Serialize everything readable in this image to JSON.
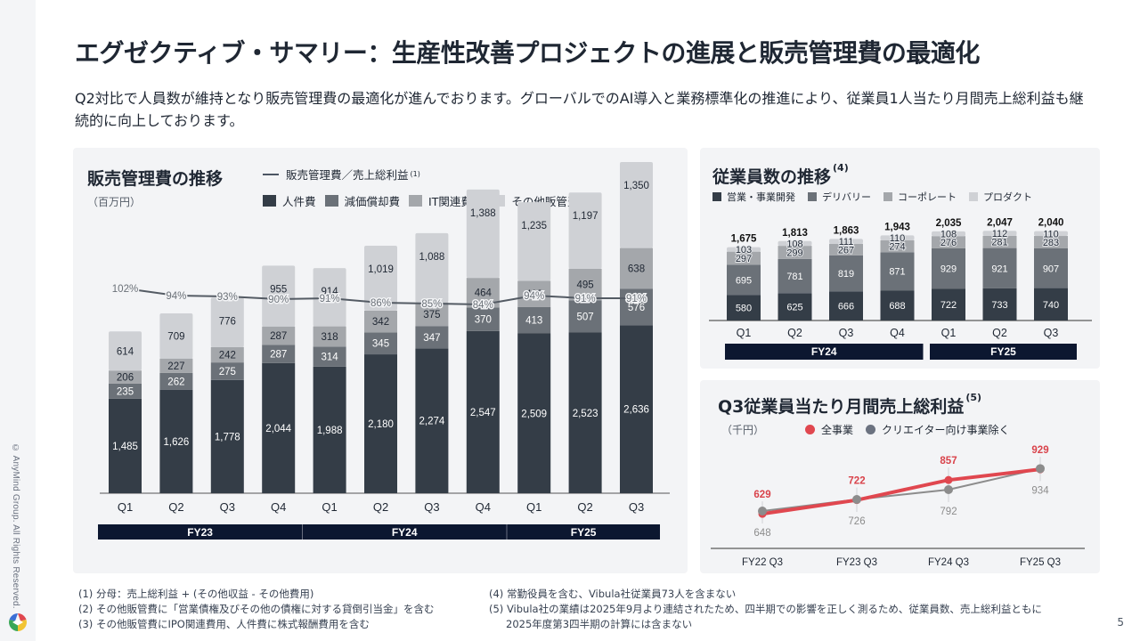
{
  "page": {
    "title": "エグゼクティブ・サマリー：生産性改善プロジェクトの進展と販売管理費の最適化",
    "summary": "Q2対比で人員数が維持となり販売管理費の最適化が進んでおります。グローバルでのAI導入と業務標準化の推進により、従業員1人当たり月間売上総利益も継続的に向上しております。",
    "copyright": "© AnyMind Group. All Rights Reserved.",
    "page_number": "5",
    "colors": {
      "navy": "#0c1730",
      "dark": "#343d47",
      "mid": "#6b7178",
      "light": "#a4a7ab",
      "lightest": "#cfd1d5",
      "red": "#e0474f",
      "gray_line": "#8c8c8c"
    }
  },
  "sga_panel": {
    "title": "販売管理費の推移",
    "unit": "（百万円）",
    "legend_line": {
      "label": "販売管理費／売上総利益",
      "note": "(1)"
    },
    "legend": [
      {
        "label": "人件費",
        "color": "#343d47"
      },
      {
        "label": "減価償却費",
        "color": "#6b7178"
      },
      {
        "label": "IT関連費用",
        "color": "#a4a7ab"
      },
      {
        "label": "その他販管費",
        "color": "#cfd1d5",
        "note": "(2)(3)"
      }
    ]
  },
  "emp_panel": {
    "title": "従業員数の推移",
    "note": "(4)",
    "legend": [
      {
        "label": "営業・事業開発",
        "color": "#343d47"
      },
      {
        "label": "デリバリー",
        "color": "#6b7178"
      },
      {
        "label": "コーポレート",
        "color": "#a4a7ab"
      },
      {
        "label": "プロダクト",
        "color": "#cfd1d5"
      }
    ]
  },
  "gp_panel": {
    "title": "Q3従業員当たり月間売上総利益",
    "note": "(5)",
    "unit": "（千円）",
    "legend": [
      {
        "label": "全事業",
        "color": "#e0474f"
      },
      {
        "label": "クリエイター向け事業除く",
        "color": "#6b7280"
      }
    ]
  },
  "chart_data": [
    {
      "type": "bar",
      "stacked": true,
      "title": "販売管理費の推移",
      "ylabel": "百万円",
      "categories": [
        "Q1",
        "Q2",
        "Q3",
        "Q4",
        "Q1",
        "Q2",
        "Q3",
        "Q4",
        "Q1",
        "Q2",
        "Q3"
      ],
      "groups": [
        {
          "label": "FY23",
          "span": [
            0,
            3
          ]
        },
        {
          "label": "FY24",
          "span": [
            4,
            7
          ]
        },
        {
          "label": "FY25",
          "span": [
            8,
            10
          ]
        }
      ],
      "series": [
        {
          "name": "人件費",
          "values": [
            1485,
            1626,
            1778,
            2044,
            1988,
            2180,
            2274,
            2547,
            2509,
            2523,
            2636
          ]
        },
        {
          "name": "減価償却費",
          "values": [
            235,
            262,
            275,
            287,
            314,
            345,
            347,
            370,
            413,
            507,
            576
          ]
        },
        {
          "name": "IT関連費用",
          "values": [
            206,
            227,
            242,
            287,
            318,
            342,
            375,
            464,
            413,
            495,
            638
          ]
        },
        {
          "name": "その他販管費",
          "values": [
            614,
            709,
            776,
            955,
            914,
            1019,
            1088,
            1388,
            1235,
            1197,
            1350
          ]
        }
      ],
      "line_series": {
        "name": "販売管理費／売上総利益",
        "values": [
          102,
          94,
          93,
          90,
          91,
          86,
          85,
          84,
          94,
          91,
          91
        ],
        "unit": "%"
      },
      "ylim": [
        0,
        5200
      ]
    },
    {
      "type": "bar",
      "stacked": true,
      "title": "従業員数の推移",
      "categories": [
        "Q1",
        "Q2",
        "Q3",
        "Q4",
        "Q1",
        "Q2",
        "Q3"
      ],
      "groups": [
        {
          "label": "FY24",
          "span": [
            0,
            3
          ]
        },
        {
          "label": "FY25",
          "span": [
            4,
            6
          ]
        }
      ],
      "series": [
        {
          "name": "営業・事業開発",
          "values": [
            580,
            625,
            666,
            688,
            722,
            733,
            740
          ]
        },
        {
          "name": "デリバリー",
          "values": [
            695,
            781,
            819,
            871,
            929,
            921,
            907
          ]
        },
        {
          "name": "コーポレート",
          "values": [
            297,
            299,
            267,
            274,
            276,
            281,
            283
          ]
        },
        {
          "name": "プロダクト",
          "values": [
            103,
            108,
            111,
            110,
            108,
            112,
            110
          ]
        }
      ],
      "totals": [
        "1,675",
        "1,813",
        "1,863",
        "1,943",
        "2,035",
        "2,047",
        "2,040"
      ],
      "ylim": [
        0,
        2500
      ]
    },
    {
      "type": "line",
      "title": "Q3従業員当たり月間売上総利益",
      "ylabel": "千円",
      "x": [
        "FY22 Q3",
        "FY23 Q3",
        "FY24 Q3",
        "FY25 Q3"
      ],
      "series": [
        {
          "name": "全事業",
          "values": [
            629,
            722,
            857,
            929
          ]
        },
        {
          "name": "クリエイター向け事業除く",
          "values": [
            648,
            726,
            792,
            934
          ]
        }
      ],
      "ylim": [
        500,
        1000
      ]
    }
  ],
  "footnotes_left": [
    "(1) 分母：売上総利益 + (その他収益 - その他費用)",
    "(2) その他販管費に「営業債権及びその他の債権に対する貸倒引当金」を含む",
    "(3) その他販管費にIPO関連費用、人件費に株式報酬費用を含む"
  ],
  "footnotes_right": [
    "(4) 常勤役員を含む、Vibula社従業員73人を含まない",
    "(5) Vibula社の業績は2025年9月より連結されたため、四半期での影響を正しく測るため、従業員数、売上総利益ともに",
    "2025年度第3四半期の計算には含まない"
  ]
}
